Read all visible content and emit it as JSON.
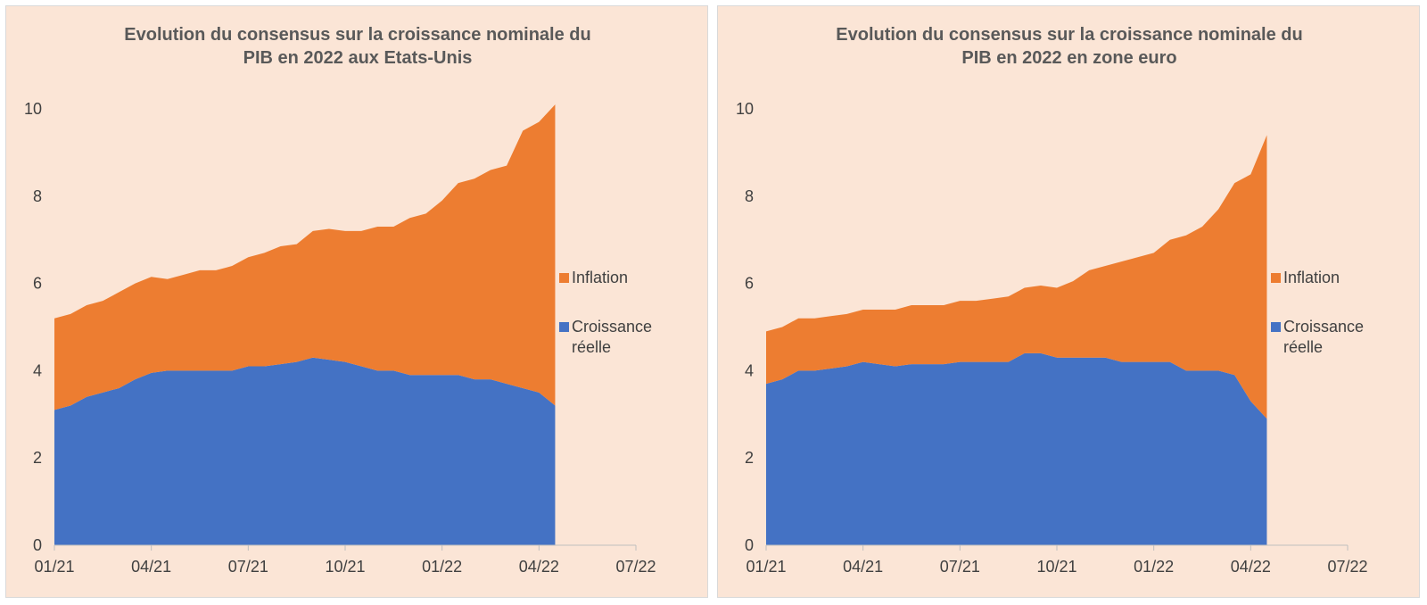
{
  "chart_data": [
    {
      "type": "area",
      "stacked": true,
      "title": [
        "Evolution du consensus sur la croissance nominale du",
        "PIB en 2022 aux Etats-Unis"
      ],
      "x_tick_labels": [
        "01/21",
        "04/21",
        "07/21",
        "10/21",
        "01/22",
        "04/22",
        "07/22"
      ],
      "x_range": [
        "2021-01",
        "2022-07"
      ],
      "ylim": [
        0,
        10
      ],
      "y_ticks": [
        0,
        2,
        4,
        6,
        8,
        10
      ],
      "grid": false,
      "legend_position": "right",
      "legend": [
        "Inflation",
        "Croissance réelle"
      ],
      "colors": {
        "Inflation": "#ed7d31",
        "Croissance réelle": "#4472c4"
      },
      "x": [
        "2021-01-01",
        "2021-01-16",
        "2021-02-01",
        "2021-02-16",
        "2021-03-01",
        "2021-03-16",
        "2021-04-01",
        "2021-04-16",
        "2021-05-01",
        "2021-05-16",
        "2021-06-01",
        "2021-06-16",
        "2021-07-01",
        "2021-07-16",
        "2021-08-01",
        "2021-08-16",
        "2021-09-01",
        "2021-09-16",
        "2021-10-01",
        "2021-10-16",
        "2021-11-01",
        "2021-11-16",
        "2021-12-01",
        "2021-12-16",
        "2022-01-01",
        "2022-01-16",
        "2022-02-01",
        "2022-02-16",
        "2022-03-01",
        "2022-03-16",
        "2022-04-01",
        "2022-04-16"
      ],
      "series": [
        {
          "name": "Croissance réelle",
          "values": [
            3.1,
            3.2,
            3.4,
            3.5,
            3.6,
            3.8,
            3.95,
            4.0,
            4.0,
            4.0,
            4.0,
            4.0,
            4.1,
            4.1,
            4.15,
            4.2,
            4.3,
            4.25,
            4.2,
            4.1,
            4.0,
            4.0,
            3.9,
            3.9,
            3.9,
            3.9,
            3.8,
            3.8,
            3.7,
            3.6,
            3.5,
            3.2
          ]
        },
        {
          "name": "Inflation",
          "values": [
            2.1,
            2.1,
            2.1,
            2.1,
            2.2,
            2.2,
            2.2,
            2.1,
            2.2,
            2.3,
            2.3,
            2.4,
            2.5,
            2.6,
            2.7,
            2.7,
            2.9,
            3.0,
            3.0,
            3.1,
            3.3,
            3.3,
            3.6,
            3.7,
            4.0,
            4.4,
            4.6,
            4.8,
            5.0,
            5.9,
            6.2,
            6.9
          ]
        }
      ]
    },
    {
      "type": "area",
      "stacked": true,
      "title": [
        "Evolution du consensus sur la croissance nominale du",
        "PIB en 2022 en zone euro"
      ],
      "x_tick_labels": [
        "01/21",
        "04/21",
        "07/21",
        "10/21",
        "01/22",
        "04/22",
        "07/22"
      ],
      "x_range": [
        "2021-01",
        "2022-07"
      ],
      "ylim": [
        0,
        10
      ],
      "y_ticks": [
        0,
        2,
        4,
        6,
        8,
        10
      ],
      "grid": false,
      "legend_position": "right",
      "legend": [
        "Inflation",
        "Croissance réelle"
      ],
      "colors": {
        "Inflation": "#ed7d31",
        "Croissance réelle": "#4472c4"
      },
      "x": [
        "2021-01-01",
        "2021-01-16",
        "2021-02-01",
        "2021-02-16",
        "2021-03-01",
        "2021-03-16",
        "2021-04-01",
        "2021-04-16",
        "2021-05-01",
        "2021-05-16",
        "2021-06-01",
        "2021-06-16",
        "2021-07-01",
        "2021-07-16",
        "2021-08-01",
        "2021-08-16",
        "2021-09-01",
        "2021-09-16",
        "2021-10-01",
        "2021-10-16",
        "2021-11-01",
        "2021-11-16",
        "2021-12-01",
        "2021-12-16",
        "2022-01-01",
        "2022-01-16",
        "2022-02-01",
        "2022-02-16",
        "2022-03-01",
        "2022-03-16",
        "2022-04-01",
        "2022-04-16"
      ],
      "series": [
        {
          "name": "Croissance réelle",
          "values": [
            3.7,
            3.8,
            4.0,
            4.0,
            4.05,
            4.1,
            4.2,
            4.15,
            4.1,
            4.15,
            4.15,
            4.15,
            4.2,
            4.2,
            4.2,
            4.2,
            4.4,
            4.4,
            4.3,
            4.3,
            4.3,
            4.3,
            4.2,
            4.2,
            4.2,
            4.2,
            4.0,
            4.0,
            4.0,
            3.9,
            3.3,
            2.9
          ]
        },
        {
          "name": "Inflation",
          "values": [
            1.2,
            1.2,
            1.2,
            1.2,
            1.2,
            1.2,
            1.2,
            1.25,
            1.3,
            1.35,
            1.35,
            1.35,
            1.4,
            1.4,
            1.45,
            1.5,
            1.5,
            1.55,
            1.6,
            1.75,
            2.0,
            2.1,
            2.3,
            2.4,
            2.5,
            2.8,
            3.1,
            3.3,
            3.7,
            4.4,
            5.2,
            6.5
          ]
        }
      ]
    }
  ]
}
